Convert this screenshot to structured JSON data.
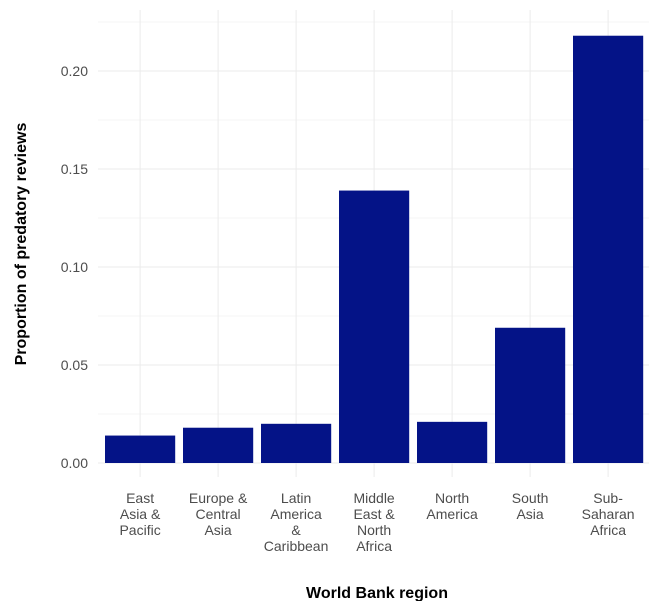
{
  "chart_data": {
    "type": "bar",
    "title": "",
    "xlabel": "World Bank region",
    "ylabel": "Proportion of predatory reviews",
    "categories": [
      [
        "East",
        "Asia &",
        "Pacific"
      ],
      [
        "Europe &",
        "Central",
        "Asia"
      ],
      [
        "Latin",
        "America",
        "&",
        "Caribbean"
      ],
      [
        "Middle",
        "East &",
        "North",
        "Africa"
      ],
      [
        "North",
        "America"
      ],
      [
        "South",
        "Asia"
      ],
      [
        "Sub-",
        "Saharan",
        "Africa"
      ]
    ],
    "values": [
      0.014,
      0.018,
      0.02,
      0.139,
      0.021,
      0.069,
      0.218
    ],
    "ylim": [
      0,
      0.22
    ],
    "yticks": [
      "0.00",
      "0.05",
      "0.10",
      "0.15",
      "0.20"
    ],
    "ytick_values": [
      0,
      0.05,
      0.1,
      0.15,
      0.2
    ],
    "bar_color": "#041387",
    "grid": true,
    "legend": "none"
  }
}
